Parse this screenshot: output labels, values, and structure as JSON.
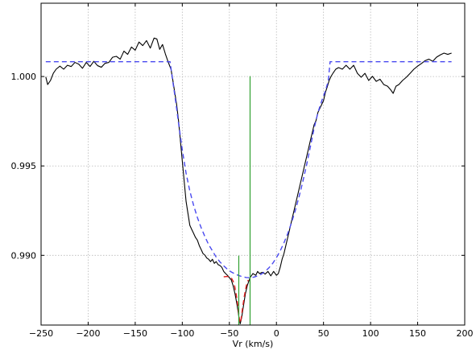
{
  "chart_data": {
    "type": "line",
    "title": "",
    "xlabel": "Vr (km/s)",
    "ylabel": "",
    "xlim": [
      -250,
      200
    ],
    "ylim": [
      0.9861,
      1.0041
    ],
    "grid": true,
    "legend": "none",
    "x_ticks": [
      -250,
      -200,
      -150,
      -100,
      -50,
      0,
      50,
      100,
      150,
      200
    ],
    "x_tick_labels": [
      "−250",
      "−200",
      "−150",
      "−100",
      "−50",
      "0",
      "50",
      "100",
      "150",
      "200"
    ],
    "y_ticks": [
      0.99,
      0.995,
      1.0
    ],
    "y_tick_labels": [
      "0.990",
      "0.995",
      "1.000"
    ],
    "series": [
      {
        "color": "#000000",
        "style": "solid",
        "points": [
          [
            -245,
            0.99998
          ],
          [
            -243,
            0.99955
          ],
          [
            -240,
            0.99978
          ],
          [
            -237,
            1.00018
          ],
          [
            -234,
            1.00041
          ],
          [
            -230,
            1.00058
          ],
          [
            -226,
            1.00041
          ],
          [
            -222,
            1.00063
          ],
          [
            -218,
            1.00056
          ],
          [
            -214,
            1.00079
          ],
          [
            -210,
            1.00069
          ],
          [
            -206,
            1.00046
          ],
          [
            -202,
            1.00079
          ],
          [
            -198,
            1.00056
          ],
          [
            -194,
            1.00085
          ],
          [
            -190,
            1.00061
          ],
          [
            -186,
            1.00052
          ],
          [
            -182,
            1.00074
          ],
          [
            -178,
            1.00079
          ],
          [
            -174,
            1.00108
          ],
          [
            -170,
            1.00113
          ],
          [
            -166,
            1.00097
          ],
          [
            -162,
            1.00142
          ],
          [
            -158,
            1.00124
          ],
          [
            -154,
            1.00165
          ],
          [
            -150,
            1.00147
          ],
          [
            -146,
            1.00193
          ],
          [
            -142,
            1.00173
          ],
          [
            -138,
            1.00201
          ],
          [
            -134,
            1.00159
          ],
          [
            -130,
            1.00215
          ],
          [
            -127,
            1.0021
          ],
          [
            -124,
            1.00152
          ],
          [
            -121,
            1.00179
          ],
          [
            -118,
            1.00127
          ],
          [
            -115,
            1.00081
          ],
          [
            -112,
            1.00041
          ],
          [
            -110,
            0.99978
          ],
          [
            -108,
            0.9991
          ],
          [
            -106,
            0.99843
          ],
          [
            -104,
            0.99753
          ],
          [
            -102,
            0.99641
          ],
          [
            -100,
            0.99528
          ],
          [
            -98,
            0.99415
          ],
          [
            -96,
            0.99303
          ],
          [
            -94,
            0.99235
          ],
          [
            -92,
            0.99168
          ],
          [
            -90,
            0.99145
          ],
          [
            -88,
            0.99123
          ],
          [
            -86,
            0.991
          ],
          [
            -84,
            0.99085
          ],
          [
            -82,
            0.99055
          ],
          [
            -80,
            0.99033
          ],
          [
            -78,
            0.9901
          ],
          [
            -76,
            0.99001
          ],
          [
            -74,
            0.98985
          ],
          [
            -72,
            0.98978
          ],
          [
            -70,
            0.98965
          ],
          [
            -68,
            0.98978
          ],
          [
            -66,
            0.98955
          ],
          [
            -64,
            0.98965
          ],
          [
            -62,
            0.98948
          ],
          [
            -60,
            0.98943
          ],
          [
            -58,
            0.98933
          ],
          [
            -56,
            0.9891
          ],
          [
            -54,
            0.98898
          ],
          [
            -52,
            0.98888
          ],
          [
            -50,
            0.98875
          ],
          [
            -48,
            0.98863
          ],
          [
            -46,
            0.9883
          ],
          [
            -44,
            0.98785
          ],
          [
            -42,
            0.98728
          ],
          [
            -40,
            0.98661
          ],
          [
            -38.5,
            0.98617
          ],
          [
            -37,
            0.9865
          ],
          [
            -35,
            0.98718
          ],
          [
            -33,
            0.98785
          ],
          [
            -31,
            0.9883
          ],
          [
            -28,
            0.98875
          ],
          [
            -25,
            0.98898
          ],
          [
            -22,
            0.98888
          ],
          [
            -20,
            0.9891
          ],
          [
            -18,
            0.98898
          ],
          [
            -15,
            0.98905
          ],
          [
            -12,
            0.98895
          ],
          [
            -9,
            0.9891
          ],
          [
            -6,
            0.98885
          ],
          [
            -3,
            0.9891
          ],
          [
            0,
            0.98888
          ],
          [
            2,
            0.98898
          ],
          [
            4,
            0.98933
          ],
          [
            6,
            0.98978
          ],
          [
            8,
            0.9901
          ],
          [
            10,
            0.99055
          ],
          [
            12,
            0.991
          ],
          [
            14,
            0.99145
          ],
          [
            16,
            0.9919
          ],
          [
            18,
            0.99235
          ],
          [
            20,
            0.9928
          ],
          [
            22,
            0.99325
          ],
          [
            24,
            0.9937
          ],
          [
            26,
            0.99415
          ],
          [
            28,
            0.9946
          ],
          [
            30,
            0.99505
          ],
          [
            32,
            0.9955
          ],
          [
            34,
            0.99595
          ],
          [
            36,
            0.99641
          ],
          [
            38,
            0.99685
          ],
          [
            40,
            0.9973
          ],
          [
            42,
            0.99753
          ],
          [
            44,
            0.99798
          ],
          [
            46,
            0.99821
          ],
          [
            48,
            0.99843
          ],
          [
            50,
            0.99865
          ],
          [
            52,
            0.99911
          ],
          [
            54,
            0.99943
          ],
          [
            56,
            0.99978
          ],
          [
            58,
            1.00001
          ],
          [
            60,
            1.00018
          ],
          [
            63,
            1.00041
          ],
          [
            66,
            1.0005
          ],
          [
            70,
            1.00041
          ],
          [
            74,
            1.00063
          ],
          [
            78,
            1.00041
          ],
          [
            82,
            1.00063
          ],
          [
            86,
            1.00018
          ],
          [
            90,
            0.99996
          ],
          [
            94,
            1.00018
          ],
          [
            98,
            0.99978
          ],
          [
            102,
            1.00001
          ],
          [
            106,
            0.99973
          ],
          [
            110,
            0.99985
          ],
          [
            114,
            0.99955
          ],
          [
            118,
            0.99946
          ],
          [
            121,
            0.99928
          ],
          [
            124,
            0.99906
          ],
          [
            127,
            0.99946
          ],
          [
            130,
            0.99955
          ],
          [
            134,
            0.99978
          ],
          [
            138,
            0.99996
          ],
          [
            142,
            1.00018
          ],
          [
            146,
            1.00041
          ],
          [
            150,
            1.00058
          ],
          [
            154,
            1.00073
          ],
          [
            158,
            1.00089
          ],
          [
            162,
            1.00097
          ],
          [
            166,
            1.00085
          ],
          [
            170,
            1.00108
          ],
          [
            174,
            1.00121
          ],
          [
            178,
            1.00131
          ],
          [
            182,
            1.00124
          ],
          [
            186,
            1.00131
          ]
        ]
      },
      {
        "color": "#4a4af0",
        "style": "dashed",
        "points": [
          [
            -245,
            1.00083
          ],
          [
            -113,
            1.00083
          ],
          [
            -110,
            0.9997
          ],
          [
            -107,
            0.9986
          ],
          [
            -104,
            0.9974
          ],
          [
            -100,
            0.9959
          ],
          [
            -96,
            0.9946
          ],
          [
            -92,
            0.9936
          ],
          [
            -88,
            0.9928
          ],
          [
            -84,
            0.99212
          ],
          [
            -80,
            0.99155
          ],
          [
            -76,
            0.99105
          ],
          [
            -72,
            0.9906
          ],
          [
            -68,
            0.99025
          ],
          [
            -64,
            0.9899
          ],
          [
            -60,
            0.98963
          ],
          [
            -56,
            0.98941
          ],
          [
            -52,
            0.98922
          ],
          [
            -48,
            0.98907
          ],
          [
            -44,
            0.98896
          ],
          [
            -40,
            0.98887
          ],
          [
            -36,
            0.9888
          ],
          [
            -32,
            0.98876
          ],
          [
            -28,
            0.98875
          ],
          [
            -24,
            0.98878
          ],
          [
            -20,
            0.98885
          ],
          [
            -16,
            0.98895
          ],
          [
            -12,
            0.9891
          ],
          [
            -8,
            0.9893
          ],
          [
            -4,
            0.98955
          ],
          [
            0,
            0.98987
          ],
          [
            4,
            0.99025
          ],
          [
            8,
            0.9907
          ],
          [
            12,
            0.99122
          ],
          [
            16,
            0.99182
          ],
          [
            20,
            0.9925
          ],
          [
            24,
            0.99327
          ],
          [
            28,
            0.99412
          ],
          [
            32,
            0.99505
          ],
          [
            36,
            0.99606
          ],
          [
            40,
            0.9971
          ],
          [
            44,
            0.99797
          ],
          [
            48,
            0.99862
          ],
          [
            52,
            0.9992
          ],
          [
            55,
            0.99973
          ],
          [
            57,
            1.00083
          ],
          [
            186,
            1.00083
          ]
        ]
      },
      {
        "color": "#e02020",
        "style": "dashed",
        "points": [
          [
            -56,
            0.9888
          ],
          [
            -52,
            0.98882
          ],
          [
            -48,
            0.98875
          ],
          [
            -45,
            0.98845
          ],
          [
            -43,
            0.9879
          ],
          [
            -41,
            0.9872
          ],
          [
            -39.5,
            0.9865
          ],
          [
            -38.5,
            0.98622
          ],
          [
            -37.5,
            0.98645
          ],
          [
            -36,
            0.98705
          ],
          [
            -34,
            0.98775
          ],
          [
            -32,
            0.9883
          ],
          [
            -30,
            0.98862
          ]
        ]
      }
    ],
    "vertical_markers": [
      {
        "x": -28,
        "y_top": 1.00002,
        "color": "#30a030"
      },
      {
        "x": -40,
        "y_top": 0.98998,
        "color": "#30a030"
      }
    ]
  }
}
